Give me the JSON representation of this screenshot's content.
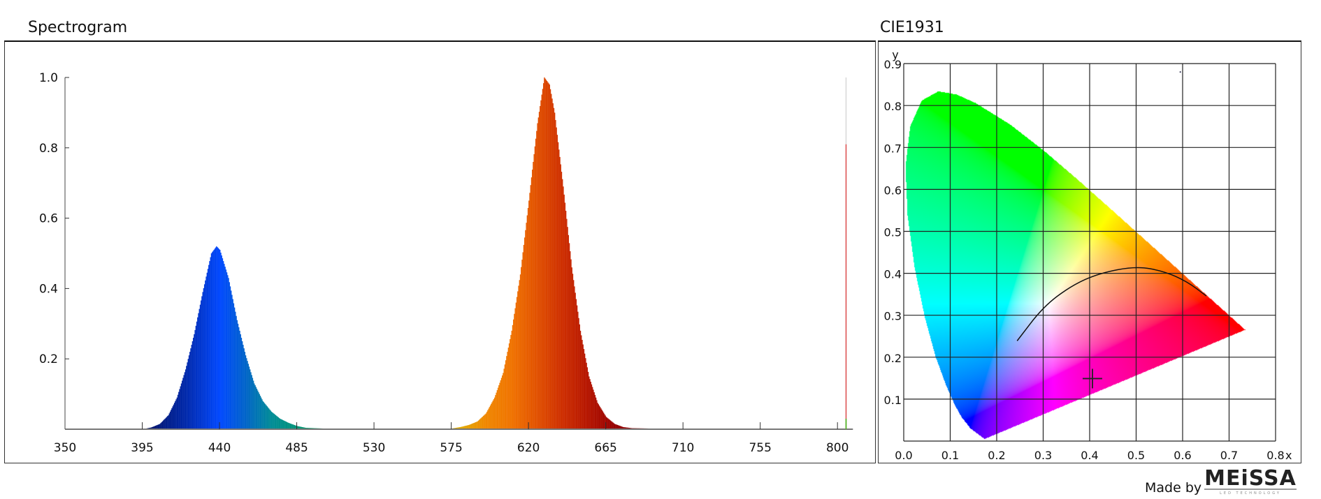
{
  "spectrogram": {
    "title": "Spectrogram"
  },
  "cie": {
    "title": "CIE1931"
  },
  "footer": {
    "made_by": "Made by",
    "logo_text": "MEiSSA",
    "logo_subtext": "LED TECHNOLOGY"
  },
  "chart_data": [
    {
      "type": "area",
      "title": "Spectrogram",
      "xlabel": "",
      "ylabel": "",
      "xlim": [
        350,
        809
      ],
      "ylim": [
        0,
        1.0
      ],
      "x_ticks": [
        "350",
        "395",
        "440",
        "485",
        "530",
        "575",
        "620",
        "665",
        "710",
        "755",
        "800"
      ],
      "y_ticks": [
        "0.2",
        "0.4",
        "0.6",
        "0.8",
        "1.0"
      ],
      "grid": false,
      "fill": "wavelength-colored",
      "x": [
        395,
        400,
        405,
        410,
        415,
        420,
        425,
        430,
        435,
        438,
        440,
        445,
        450,
        455,
        460,
        465,
        470,
        475,
        480,
        485,
        490,
        500,
        520,
        560,
        575,
        580,
        585,
        590,
        595,
        600,
        605,
        610,
        615,
        620,
        625,
        629,
        632,
        635,
        640,
        645,
        650,
        655,
        660,
        665,
        670,
        675,
        680,
        700,
        809
      ],
      "y": [
        0,
        0.005,
        0.015,
        0.04,
        0.09,
        0.17,
        0.27,
        0.39,
        0.5,
        0.52,
        0.51,
        0.43,
        0.31,
        0.21,
        0.13,
        0.08,
        0.05,
        0.03,
        0.018,
        0.009,
        0.004,
        0.002,
        0.001,
        0.001,
        0.002,
        0.006,
        0.012,
        0.022,
        0.045,
        0.09,
        0.16,
        0.28,
        0.44,
        0.65,
        0.87,
        1.0,
        0.98,
        0.9,
        0.69,
        0.46,
        0.28,
        0.15,
        0.075,
        0.035,
        0.015,
        0.006,
        0.003,
        0.001,
        0
      ],
      "marker": {
        "x": 805,
        "levels": [
          {
            "y": 1.0,
            "color": "#d8d8d8"
          },
          {
            "y": 0.81,
            "color": "#e05050"
          },
          {
            "y": 0.03,
            "color": "#40c020"
          }
        ]
      }
    },
    {
      "type": "scatter",
      "title": "CIE1931",
      "xlabel": "x",
      "ylabel": "y",
      "xlim": [
        0,
        0.8
      ],
      "ylim": [
        0,
        0.9
      ],
      "x_ticks": [
        "0.0",
        "0.1",
        "0.2",
        "0.3",
        "0.4",
        "0.5",
        "0.6",
        "0.7",
        "0.8"
      ],
      "y_ticks": [
        "0.1",
        "0.2",
        "0.3",
        "0.4",
        "0.5",
        "0.6",
        "0.7",
        "0.8",
        "0.9"
      ],
      "grid": true,
      "spectral_locus": [
        [
          0.1741,
          0.005
        ],
        [
          0.144,
          0.0297
        ],
        [
          0.1241,
          0.0578
        ],
        [
          0.1096,
          0.0868
        ],
        [
          0.0913,
          0.1327
        ],
        [
          0.0687,
          0.2007
        ],
        [
          0.0454,
          0.295
        ],
        [
          0.0235,
          0.4127
        ],
        [
          0.0082,
          0.5384
        ],
        [
          0.0039,
          0.6548
        ],
        [
          0.0139,
          0.7502
        ],
        [
          0.0389,
          0.812
        ],
        [
          0.0743,
          0.8338
        ],
        [
          0.1142,
          0.8262
        ],
        [
          0.1547,
          0.8059
        ],
        [
          0.2296,
          0.7543
        ],
        [
          0.3016,
          0.6923
        ],
        [
          0.3731,
          0.6245
        ],
        [
          0.4441,
          0.5547
        ],
        [
          0.5125,
          0.4866
        ],
        [
          0.5752,
          0.4242
        ],
        [
          0.627,
          0.3725
        ],
        [
          0.6915,
          0.3083
        ],
        [
          0.719,
          0.2809
        ],
        [
          0.7347,
          0.2653
        ]
      ],
      "planckian_locus": [
        [
          0.244,
          0.239
        ],
        [
          0.3,
          0.32
        ],
        [
          0.36,
          0.37
        ],
        [
          0.42,
          0.4
        ],
        [
          0.5,
          0.417
        ],
        [
          0.56,
          0.405
        ],
        [
          0.61,
          0.38
        ],
        [
          0.651,
          0.346
        ]
      ],
      "measured_point": {
        "x": 0.406,
        "y": 0.149
      },
      "reference_dot": {
        "x": 0.595,
        "y": 0.88
      }
    }
  ]
}
